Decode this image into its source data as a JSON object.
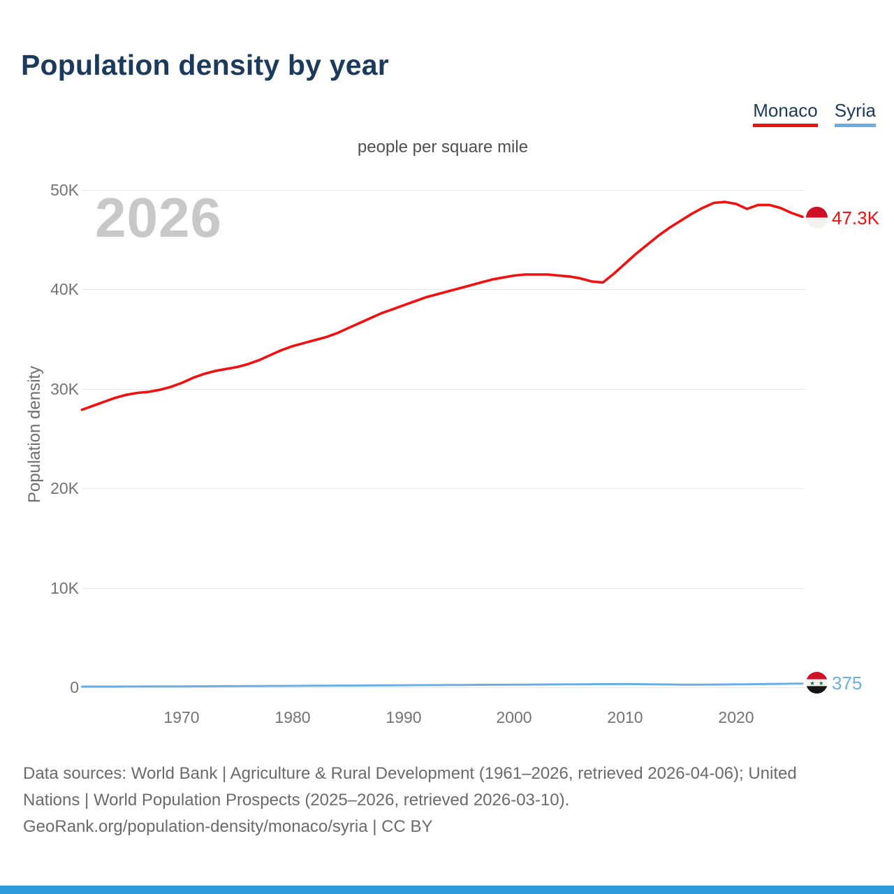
{
  "title": "Population density by year",
  "subtitle": "people per square mile",
  "watermark_year": "2026",
  "legend": {
    "items": [
      {
        "label": "Monaco",
        "color": "#f01010"
      },
      {
        "label": "Syria",
        "color": "#6aaee8"
      }
    ]
  },
  "y_axis": {
    "label": "Population density",
    "ticks": [
      "50K",
      "40K",
      "30K",
      "20K",
      "10K",
      "0"
    ]
  },
  "x_axis": {
    "ticks": [
      "1970",
      "1980",
      "1990",
      "2000",
      "2010",
      "2020"
    ]
  },
  "end_markers": {
    "monaco": {
      "label": "47.3K"
    },
    "syria": {
      "label": "375"
    }
  },
  "footer": {
    "lines": [
      "Data sources: World Bank | Agriculture & Rural Development (1961–2026, retrieved 2026-04-06); United",
      "Nations | World Population Prospects (2025–2026, retrieved 2026-03-10).",
      "GeoRank.org/population-density/monaco/syria | CC BY"
    ]
  },
  "colors": {
    "navy": "#1c3a5c",
    "monaco_red": "#f01010",
    "syria_blue": "#6aaee8",
    "accent_bar": "#2d9cdb",
    "grid": "#e7e7e7",
    "tick_gray": "#737373",
    "watermark_gray": "#c8c8c8",
    "monaco_flag_red": "#ce1126",
    "syria_flag_green": "#007a3d"
  },
  "chart_data": {
    "type": "line",
    "title": "Population density by year",
    "subtitle": "people per square mile",
    "ylabel": "Population density",
    "unit": "people per square mile",
    "xlim": [
      1961,
      2026
    ],
    "ylim": [
      0,
      50000
    ],
    "x_ticks": [
      1970,
      1980,
      1990,
      2000,
      2010,
      2020
    ],
    "y_ticks": [
      0,
      10000,
      20000,
      30000,
      40000,
      50000
    ],
    "grid": "horizontal",
    "legend_position": "top-right",
    "watermark": "2026",
    "series": [
      {
        "name": "Monaco",
        "color": "#f01010",
        "end_label": "47.3K",
        "end_value": 47300,
        "years": [
          1961,
          1962,
          1963,
          1964,
          1965,
          1966,
          1967,
          1968,
          1969,
          1970,
          1971,
          1972,
          1973,
          1974,
          1975,
          1976,
          1977,
          1978,
          1979,
          1980,
          1981,
          1982,
          1983,
          1984,
          1985,
          1986,
          1987,
          1988,
          1989,
          1990,
          1991,
          1992,
          1993,
          1994,
          1995,
          1996,
          1997,
          1998,
          1999,
          2000,
          2001,
          2002,
          2003,
          2004,
          2005,
          2006,
          2007,
          2008,
          2009,
          2010,
          2011,
          2012,
          2013,
          2014,
          2015,
          2016,
          2017,
          2018,
          2019,
          2020,
          2021,
          2022,
          2023,
          2024,
          2025,
          2026
        ],
        "values": [
          27900,
          28300,
          28700,
          29100,
          29400,
          29600,
          29700,
          29900,
          30200,
          30600,
          31100,
          31500,
          31800,
          32000,
          32200,
          32500,
          32900,
          33400,
          33900,
          34300,
          34600,
          34900,
          35200,
          35600,
          36100,
          36600,
          37100,
          37600,
          38000,
          38400,
          38800,
          39200,
          39500,
          39800,
          40100,
          40400,
          40700,
          41000,
          41200,
          41400,
          41500,
          41500,
          41500,
          41400,
          41300,
          41100,
          40800,
          40700,
          41600,
          42600,
          43600,
          44500,
          45400,
          46200,
          46900,
          47600,
          48200,
          48700,
          48800,
          48600,
          48100,
          48500,
          48500,
          48200,
          47700,
          47300
        ]
      },
      {
        "name": "Syria",
        "color": "#6aaee8",
        "end_label": "375",
        "end_value": 375,
        "years": [
          1961,
          1962,
          1963,
          1964,
          1965,
          1966,
          1967,
          1968,
          1969,
          1970,
          1971,
          1972,
          1973,
          1974,
          1975,
          1976,
          1977,
          1978,
          1979,
          1980,
          1981,
          1982,
          1983,
          1984,
          1985,
          1986,
          1987,
          1988,
          1989,
          1990,
          1991,
          1992,
          1993,
          1994,
          1995,
          1996,
          1997,
          1998,
          1999,
          2000,
          2001,
          2002,
          2003,
          2004,
          2005,
          2006,
          2007,
          2008,
          2009,
          2010,
          2011,
          2012,
          2013,
          2014,
          2015,
          2016,
          2017,
          2018,
          2019,
          2020,
          2021,
          2022,
          2023,
          2024,
          2025,
          2026
        ],
        "values": [
          64,
          67,
          70,
          73,
          76,
          79,
          82,
          85,
          88,
          92,
          96,
          100,
          104,
          109,
          114,
          119,
          124,
          130,
          136,
          142,
          148,
          154,
          160,
          166,
          172,
          178,
          184,
          190,
          196,
          202,
          208,
          214,
          220,
          226,
          232,
          238,
          244,
          250,
          256,
          262,
          268,
          275,
          282,
          289,
          296,
          303,
          310,
          315,
          318,
          320,
          318,
          305,
          290,
          278,
          270,
          266,
          268,
          274,
          282,
          292,
          304,
          318,
          332,
          347,
          361,
          375
        ]
      }
    ]
  }
}
